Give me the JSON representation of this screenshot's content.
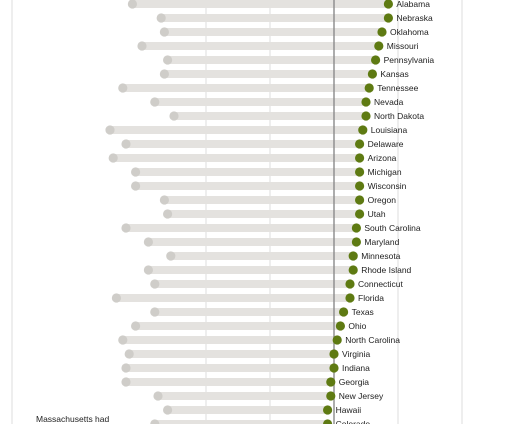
{
  "colors": {
    "accent": "#5e7a12",
    "bar": "#e4e2df",
    "start_dot": "#cfcdc9",
    "gridline": "#d6d6d6",
    "reference_line": "#8a8a8a",
    "text": "#222222"
  },
  "chart_data": {
    "type": "dumbbell",
    "title": "",
    "xlabel": "",
    "ylabel": "",
    "grid": true,
    "xlim": [
      -5,
      16
    ],
    "gridlines_x": [
      -4,
      -2,
      0,
      2,
      4
    ],
    "reference_x": 0,
    "categories": [
      "Alabama",
      "Nebraska",
      "Oklahoma",
      "Missouri",
      "Pennsylvania",
      "Kansas",
      "Tennessee",
      "Nevada",
      "North Dakota",
      "Louisiana",
      "Delaware",
      "Arizona",
      "Michigan",
      "Wisconsin",
      "Oregon",
      "Utah",
      "South Carolina",
      "Maryland",
      "Minnesota",
      "Rhode Island",
      "Connecticut",
      "Florida",
      "Texas",
      "Ohio",
      "North Carolina",
      "Virginia",
      "Indiana",
      "Georgia",
      "New Jersey",
      "Hawaii",
      "Colorado"
    ],
    "series": [
      {
        "values": [
          -6.3,
          -5.4,
          -5.3,
          -6.0,
          -5.2,
          -5.3,
          -6.6,
          -5.6,
          -5.0,
          -7.0,
          -6.5,
          -6.9,
          -6.2,
          -6.2,
          -5.3,
          -5.2,
          -6.5,
          -5.8,
          -5.1,
          -5.8,
          -5.6,
          -6.8,
          -5.6,
          -6.2,
          -6.6,
          -6.4,
          -6.5,
          -6.5,
          -5.5,
          -5.2,
          -5.6
        ]
      },
      {
        "values": [
          1.7,
          1.7,
          1.5,
          1.4,
          1.3,
          1.2,
          1.1,
          1.0,
          1.0,
          0.9,
          0.8,
          0.8,
          0.8,
          0.8,
          0.8,
          0.8,
          0.7,
          0.7,
          0.6,
          0.6,
          0.5,
          0.5,
          0.3,
          0.2,
          0.1,
          0.0,
          0.0,
          -0.1,
          -0.1,
          -0.2,
          -0.2
        ]
      }
    ],
    "annotations": [
      "Massachusetts had"
    ]
  }
}
